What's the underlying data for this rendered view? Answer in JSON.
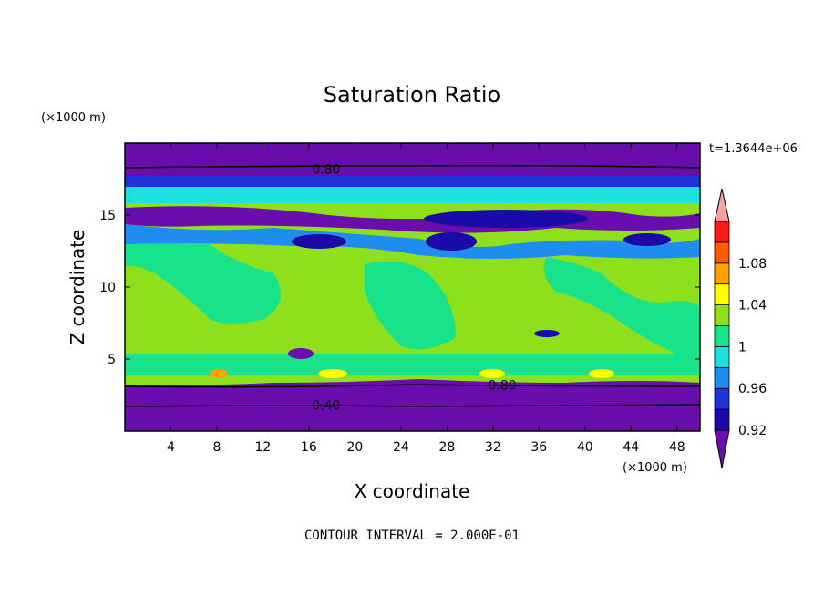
{
  "chart_data": {
    "type": "heatmap",
    "title": "Saturation Ratio",
    "xlabel": "X coordinate",
    "ylabel": "Z coordinate",
    "x_unit": "(×1000 m)",
    "y_unit": "(×1000 m)",
    "time_label": "t=1.3644e+06",
    "contour_interval_text": "CONTOUR INTERVAL = 2.000E-01",
    "xlim": [
      0,
      50
    ],
    "ylim": [
      0,
      20
    ],
    "x_ticks": [
      4,
      8,
      12,
      16,
      20,
      24,
      28,
      32,
      36,
      40,
      44,
      48
    ],
    "y_ticks": [
      5,
      10,
      15
    ],
    "contour_labels": [
      {
        "text": "0.80",
        "x": 17.5,
        "y": 18.2
      },
      {
        "text": "0.80",
        "x": 32.8,
        "y": 3.2
      },
      {
        "text": "0.40",
        "x": 17.5,
        "y": 1.8
      }
    ],
    "colorbar": {
      "levels": [
        0.92,
        0.94,
        0.96,
        0.98,
        1.0,
        1.02,
        1.04,
        1.06,
        1.08,
        1.1
      ],
      "tick_labels": [
        "0.92",
        "0.96",
        "1",
        "1.04",
        "1.08"
      ],
      "colors": [
        "#6a0dad",
        "#1a0aa8",
        "#1f34d8",
        "#1f8cf0",
        "#1fe0e0",
        "#19e38a",
        "#8ee01c",
        "#ffff00",
        "#ffa200",
        "#ff5a00",
        "#ff1a1a",
        "#f4a3a3"
      ]
    },
    "bands": [
      {
        "y0": 18.3,
        "y1": 20.0,
        "class": "purple"
      },
      {
        "y0": 3.2,
        "y1": 0.0,
        "class": "purple"
      },
      {
        "y0": 17.0,
        "y1": 16.0,
        "class": "blue"
      },
      {
        "y0": 15.3,
        "y1": 14.2,
        "class": "purple"
      },
      {
        "y0": 14.2,
        "y1": 4.0,
        "class": "green"
      }
    ]
  }
}
